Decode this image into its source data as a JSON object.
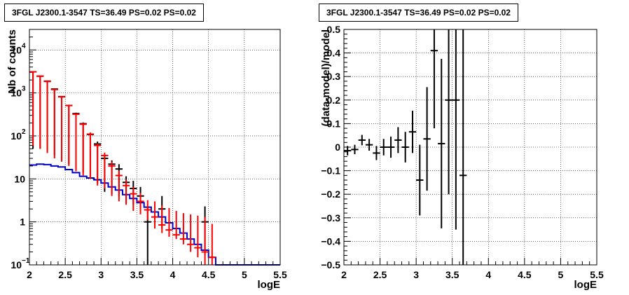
{
  "chart_data": [
    {
      "type": "step-histogram with error bars",
      "title": "3FGL J2300.1-3547 TS=36.49 PS=0.02 PS=0.02",
      "xlabel": "logE",
      "ylabel": "Nb of counts",
      "xlim": [
        2,
        5.5
      ],
      "ylim": [
        0.1,
        30000
      ],
      "y_scale": "log",
      "grid": true,
      "x_ticks": [
        "2",
        "2.5",
        "3",
        "3.5",
        "4",
        "4.5",
        "5",
        "5.5"
      ],
      "y_ticks": [
        "10^-1",
        "1",
        "10",
        "10^2",
        "10^3",
        "10^4"
      ],
      "bin_width": 0.1,
      "series": [
        {
          "color": "#000000",
          "style": "points-with-errors",
          "x": [
            2.05,
            2.15,
            2.25,
            2.35,
            2.45,
            2.55,
            2.65,
            2.75,
            2.85,
            2.95,
            3.05,
            3.15,
            3.25,
            3.35,
            3.45,
            3.55,
            3.65,
            3.85,
            4.45
          ],
          "y": [
            3100,
            2450,
            1880,
            1230,
            820,
            510,
            330,
            192,
            108,
            65,
            30,
            22,
            17,
            8.3,
            6.0,
            4.0,
            1.0,
            2.0,
            1.0
          ],
          "yerr_low": [
            3050,
            2400,
            1835,
            1195,
            792,
            488,
            312,
            178,
            98,
            57,
            25,
            17.5,
            13,
            5.5,
            3.5,
            2.0,
            0.9,
            1.3,
            0.83
          ],
          "yerr_high": [
            3160,
            2500,
            1925,
            1265,
            850,
            532,
            348,
            206,
            118,
            74,
            36,
            27,
            22,
            11.5,
            9.0,
            6.5,
            2.3,
            4.0,
            2.3
          ]
        },
        {
          "color": "#ff0000",
          "style": "points-with-errors",
          "x": [
            2.05,
            2.15,
            2.25,
            2.35,
            2.45,
            2.55,
            2.65,
            2.75,
            2.85,
            2.95,
            3.05,
            3.15,
            3.25,
            3.35,
            3.45,
            3.55,
            3.65,
            3.75,
            3.85,
            3.95,
            4.05,
            4.15,
            4.25,
            4.35,
            4.45,
            4.55
          ],
          "y": [
            3100,
            2470,
            1850,
            1200,
            810,
            510,
            320,
            187,
            110,
            60,
            35,
            20,
            12,
            7.0,
            4.5,
            3.0,
            1.9,
            1.3,
            0.85,
            0.65,
            0.5,
            0.4,
            0.3,
            0.25,
            0.2,
            0.15
          ],
          "yerr_low": [
            3040,
            2420,
            1810,
            1170,
            785,
            490,
            305,
            175,
            100,
            53,
            29,
            16,
            9,
            4.5,
            2.7,
            1.5,
            0.8,
            0.6,
            0.3,
            0.2,
            0.1,
            0.1,
            0.1,
            0.1,
            0.1,
            0.1
          ],
          "yerr_high": [
            3160,
            2520,
            1890,
            1230,
            835,
            530,
            335,
            199,
            120,
            67,
            41,
            25,
            15.5,
            9.6,
            6.5,
            4.7,
            3.2,
            3.0,
            2.4,
            2.1,
            1.8,
            1.6,
            1.5,
            1.4,
            1.3,
            0.9
          ]
        },
        {
          "color": "#0000cc",
          "style": "step-line",
          "x_edges": [
            2.0,
            2.1,
            2.2,
            2.3,
            2.4,
            2.5,
            2.6,
            2.7,
            2.8,
            2.9,
            3.0,
            3.1,
            3.2,
            3.3,
            3.4,
            3.5,
            3.6,
            3.7,
            3.8,
            3.9,
            4.0,
            4.1,
            4.2,
            4.3,
            4.4,
            4.5,
            4.6,
            5.5
          ],
          "y": [
            21,
            22,
            21.5,
            20,
            19,
            16.5,
            14,
            11.5,
            10.5,
            9.5,
            8,
            6.5,
            5.5,
            4.3,
            3.5,
            2.8,
            2.2,
            1.7,
            1.3,
            0.95,
            0.7,
            0.55,
            0.4,
            0.3,
            0.22,
            0.15,
            0.1
          ]
        }
      ]
    },
    {
      "type": "scatter with error bars",
      "title": "3FGL J2300.1-3547 TS=36.49 PS=0.02 PS=0.02",
      "xlabel": "logE",
      "ylabel": "(data-model)/model",
      "xlim": [
        2,
        5.5
      ],
      "ylim": [
        -0.5,
        0.5
      ],
      "grid": true,
      "x_ticks": [
        "2",
        "2.5",
        "3",
        "3.5",
        "4",
        "4.5",
        "5",
        "5.5"
      ],
      "y_ticks": [
        "−0.5",
        "−0.4",
        "−0.3",
        "−0.2",
        "−0.1",
        "0",
        "0.1",
        "0.2",
        "0.3",
        "0.4",
        "0.5"
      ],
      "bin_width": 0.1,
      "series": [
        {
          "color": "#000000",
          "x": [
            2.05,
            2.15,
            2.25,
            2.35,
            2.45,
            2.55,
            2.65,
            2.75,
            2.85,
            2.95,
            3.05,
            3.15,
            3.25,
            3.35,
            3.45,
            3.55,
            3.65
          ],
          "y": [
            -0.015,
            -0.01,
            0.03,
            0.01,
            -0.025,
            0.0,
            0.0,
            0.03,
            0.0,
            0.065,
            -0.14,
            0.035,
            0.41,
            0.015,
            0.2,
            0.2,
            -0.12
          ],
          "err": [
            0.02,
            0.02,
            0.022,
            0.025,
            0.03,
            0.035,
            0.045,
            0.055,
            0.065,
            0.09,
            0.15,
            0.22,
            0.33,
            0.36,
            0.4,
            0.55,
            0.7
          ]
        }
      ]
    }
  ]
}
